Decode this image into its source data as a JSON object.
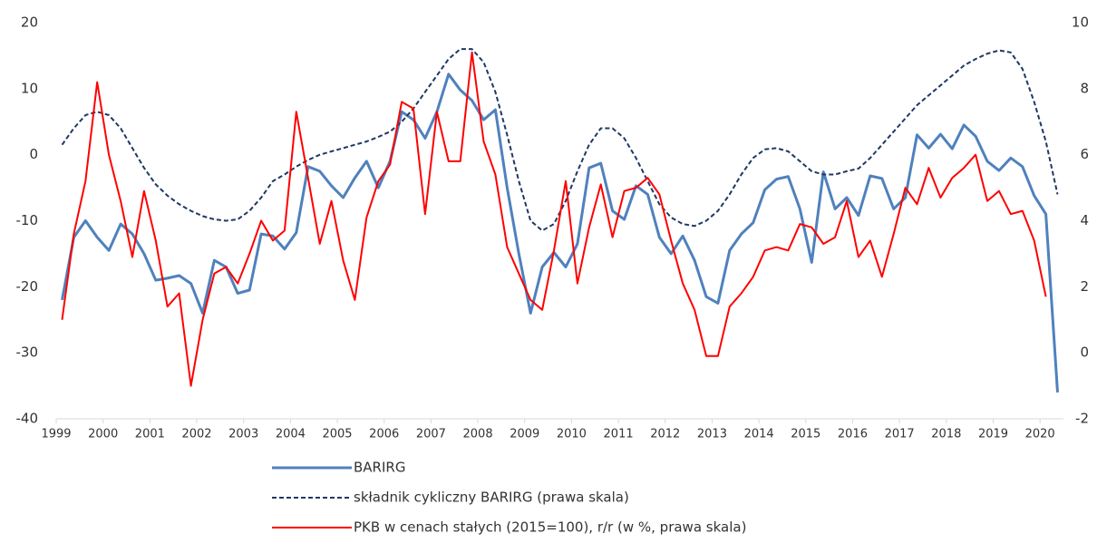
{
  "chart_data": {
    "type": "line",
    "x": [
      1999.125,
      1999.375,
      1999.625,
      1999.875,
      2000.125,
      2000.375,
      2000.625,
      2000.875,
      2001.125,
      2001.375,
      2001.625,
      2001.875,
      2002.125,
      2002.375,
      2002.625,
      2002.875,
      2003.125,
      2003.375,
      2003.625,
      2003.875,
      2004.125,
      2004.375,
      2004.625,
      2004.875,
      2005.125,
      2005.375,
      2005.625,
      2005.875,
      2006.125,
      2006.375,
      2006.625,
      2006.875,
      2007.125,
      2007.375,
      2007.625,
      2007.875,
      2008.125,
      2008.375,
      2008.625,
      2008.875,
      2009.125,
      2009.375,
      2009.625,
      2009.875,
      2010.125,
      2010.375,
      2010.625,
      2010.875,
      2011.125,
      2011.375,
      2011.625,
      2011.875,
      2012.125,
      2012.375,
      2012.625,
      2012.875,
      2013.125,
      2013.375,
      2013.625,
      2013.875,
      2014.125,
      2014.375,
      2014.625,
      2014.875,
      2015.125,
      2015.375,
      2015.625,
      2015.875,
      2016.125,
      2016.375,
      2016.625,
      2016.875,
      2017.125,
      2017.375,
      2017.625,
      2017.875,
      2018.125,
      2018.375,
      2018.625,
      2018.875,
      2019.125,
      2019.375,
      2019.625,
      2019.875,
      2020.125,
      2020.375
    ],
    "xlim": [
      1999,
      2020.5
    ],
    "xticks": [
      1999,
      2000,
      2001,
      2002,
      2003,
      2004,
      2005,
      2006,
      2007,
      2008,
      2009,
      2010,
      2011,
      2012,
      2013,
      2014,
      2015,
      2016,
      2017,
      2018,
      2019,
      2020
    ],
    "ylim": [
      -40,
      20
    ],
    "yticks": [
      -40,
      -30,
      -20,
      -10,
      0,
      10,
      20
    ],
    "y2lim": [
      -2,
      10
    ],
    "y2ticks": [
      -2,
      0,
      2,
      4,
      6,
      8,
      10
    ],
    "series": [
      {
        "name": "BARIRG",
        "color": "#4f81bd",
        "style": "solid",
        "values": [
          -22,
          -12.5,
          -10,
          -12.5,
          -14.5,
          -10.5,
          -12,
          -15,
          -19,
          -18.7,
          -18.3,
          -19.5,
          -24,
          -16,
          -17,
          -21,
          -20.5,
          -12,
          -12.3,
          -14.3,
          -11.8,
          -1.8,
          -2.5,
          -4.7,
          -6.5,
          -3.5,
          -1,
          -5,
          -1,
          6.5,
          5.3,
          2.5,
          6.5,
          12.2,
          9.8,
          8.2,
          5.3,
          6.8,
          -5,
          -15,
          -24,
          -17,
          -14.8,
          -17,
          -13.5,
          -2,
          -1.3,
          -8.5,
          -9.8,
          -4.7,
          -6,
          -12.5,
          -15,
          -12.3,
          -16,
          -21.5,
          -22.5,
          -14.5,
          -12,
          -10.3,
          -5.3,
          -3.7,
          -3.3,
          -8.2,
          -16.3,
          -2.6,
          -8.2,
          -6.5,
          -9.2,
          -3.2,
          -3.6,
          -8.2,
          -6.5,
          3,
          1,
          3.1,
          0.9,
          4.5,
          2.8,
          -1,
          -2.4,
          -0.5,
          -1.8,
          -6.2,
          -9,
          -36
        ]
      },
      {
        "name": "składnik cykliczny BARIRG (prawa skala)",
        "color": "#1f3864",
        "style": "dashed",
        "axis": "y2",
        "values": [
          6.3,
          6.8,
          7.2,
          7.3,
          7.2,
          6.8,
          6.2,
          5.6,
          5.1,
          4.76,
          4.5,
          4.3,
          4.14,
          4.04,
          4,
          4.04,
          4.3,
          4.7,
          5.2,
          5.4,
          5.64,
          5.84,
          6,
          6.1,
          6.2,
          6.3,
          6.4,
          6.54,
          6.7,
          7,
          7.4,
          7.9,
          8.4,
          8.9,
          9.2,
          9.2,
          8.8,
          7.9,
          6.6,
          5.2,
          4,
          3.7,
          3.9,
          4.6,
          5.5,
          6.3,
          6.8,
          6.8,
          6.5,
          5.9,
          5.2,
          4.5,
          4.1,
          3.9,
          3.84,
          4,
          4.3,
          4.8,
          5.4,
          5.9,
          6.16,
          6.2,
          6.1,
          5.8,
          5.5,
          5.4,
          5.4,
          5.5,
          5.58,
          5.9,
          6.3,
          6.7,
          7.1,
          7.5,
          7.8,
          8.1,
          8.4,
          8.7,
          8.9,
          9.06,
          9.16,
          9.1,
          8.6,
          7.6,
          6.4,
          4.8
        ]
      },
      {
        "name": "PKB w cenach stałych (2015=100), r/r (w %, prawa skala)",
        "color": "#ff0000",
        "style": "solid",
        "axis": "y2",
        "values": [
          1,
          3.6,
          5.2,
          8.2,
          6,
          4.6,
          2.9,
          4.9,
          3.4,
          1.4,
          1.8,
          -1,
          1,
          2.4,
          2.6,
          2.1,
          3,
          4,
          3.4,
          3.7,
          7.3,
          5.3,
          3.3,
          4.6,
          2.8,
          1.6,
          4.1,
          5.2,
          5.7,
          7.6,
          7.4,
          4.2,
          7.3,
          5.8,
          5.8,
          9.1,
          6.4,
          5.4,
          3.2,
          2.4,
          1.6,
          1.3,
          3.1,
          5.2,
          2.1,
          3.8,
          5.1,
          3.5,
          4.9,
          5,
          5.3,
          4.8,
          3.4,
          2.1,
          1.3,
          -0.1,
          -0.1,
          1.4,
          1.8,
          2.3,
          3.1,
          3.2,
          3.1,
          3.9,
          3.8,
          3.3,
          3.5,
          4.6,
          2.9,
          3.4,
          2.3,
          3.6,
          5,
          4.5,
          5.6,
          4.7,
          5.3,
          5.6,
          6,
          4.6,
          4.9,
          4.2,
          4.3,
          3.4,
          1.7,
          null
        ]
      }
    ]
  }
}
